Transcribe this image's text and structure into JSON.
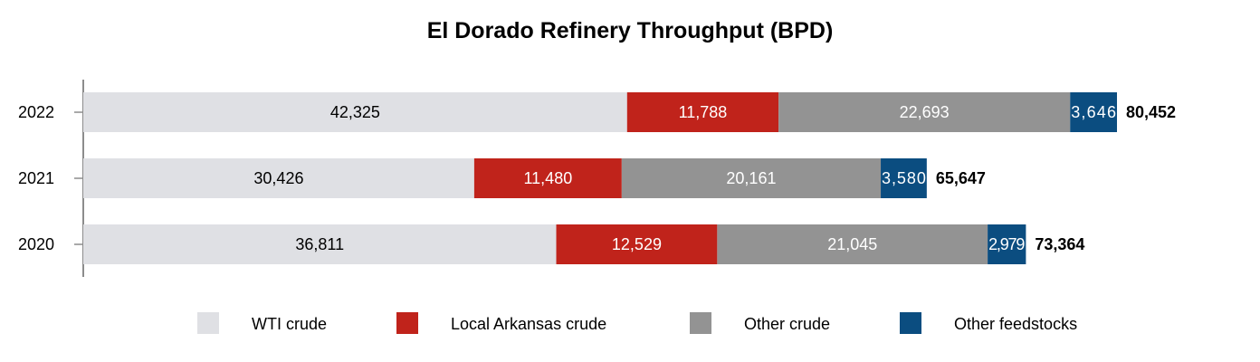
{
  "chart_data": {
    "type": "bar",
    "orientation": "horizontal",
    "stacked": true,
    "title": "El Dorado Refinery Throughput (BPD)",
    "xlabel": "",
    "ylabel": "",
    "grid": false,
    "legend_position": "bottom",
    "categories": [
      "2022",
      "2021",
      "2020"
    ],
    "series": [
      {
        "name": "WTI crude",
        "color": "#dfe0e4",
        "text_color": "#000000",
        "values": [
          42325,
          30426,
          36811
        ],
        "labels": [
          "42,325",
          "30,426",
          "36,811"
        ]
      },
      {
        "name": "Local Arkansas crude",
        "color": "#c0231b",
        "text_color": "#ffffff",
        "values": [
          11788,
          11480,
          12529
        ],
        "labels": [
          "11,788",
          "11,480",
          "12,529"
        ]
      },
      {
        "name": "Other crude",
        "color": "#939393",
        "text_color": "#ffffff",
        "values": [
          22693,
          20161,
          21045
        ],
        "labels": [
          "22,693",
          "20,161",
          "21,045"
        ]
      },
      {
        "name": "Other feedstocks",
        "color": "#0b4d80",
        "text_color": "#ffffff",
        "values": [
          3646,
          3580,
          2979
        ],
        "labels": [
          "3,646",
          "3,580",
          "2,979"
        ]
      }
    ],
    "totals": [
      80452,
      65647,
      73364
    ],
    "total_labels": [
      "80,452",
      "65,647",
      "73,364"
    ]
  }
}
